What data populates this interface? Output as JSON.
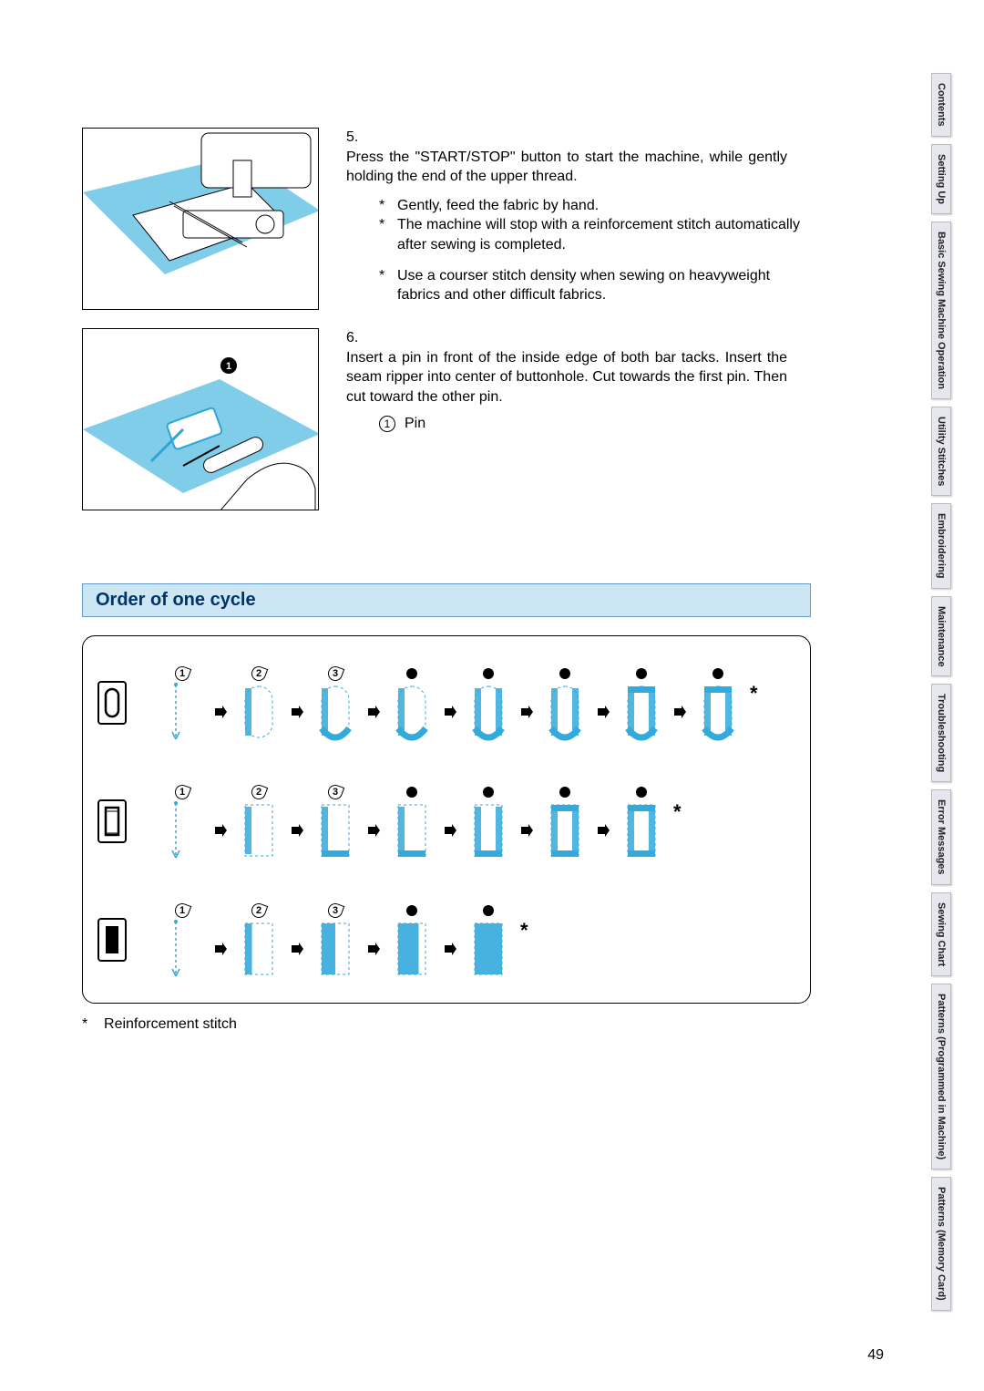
{
  "page_number": "49",
  "tabs": [
    "Contents",
    "Setting Up",
    "Basic Sewing Machine Operation",
    "Utility Stitches",
    "Embroidering",
    "Maintenance",
    "Troubleshooting",
    "Error Messages",
    "Sewing Chart",
    "Patterns (Programmed in Machine)",
    "Patterns (Memory Card)"
  ],
  "step5": {
    "num": "5.",
    "body": "Press the \"START/STOP\" button to start the machine, while gently holding the end of the upper thread.",
    "bullets": [
      "Gently, feed the fabric by hand.",
      "The machine will stop with a reinforcement stitch automatically after sewing is completed.",
      "Use a courser stitch density when sewing on heavyweight fabrics and other difficult fabrics."
    ]
  },
  "step6": {
    "num": "6.",
    "body": "Insert a pin in front of the inside edge of both bar tacks. Insert the seam ripper into center of buttonhole. Cut towards the first pin. Then cut toward the other pin.",
    "label_num": "1",
    "label_text": "Pin"
  },
  "section_title": "Order of one cycle",
  "footnote_mark": "*",
  "footnote_text": "Reinforcement stitch",
  "colors": {
    "accent": "#33aadd",
    "title_bg": "#cce6f4",
    "title_border": "#6699cc",
    "title_text": "#003366",
    "tab_bg": "#e6e6ef"
  },
  "cycle": {
    "rows": [
      {
        "icon": "round",
        "steps": 8
      },
      {
        "icon": "square",
        "steps": 7
      },
      {
        "icon": "dense",
        "steps": 5
      }
    ]
  }
}
